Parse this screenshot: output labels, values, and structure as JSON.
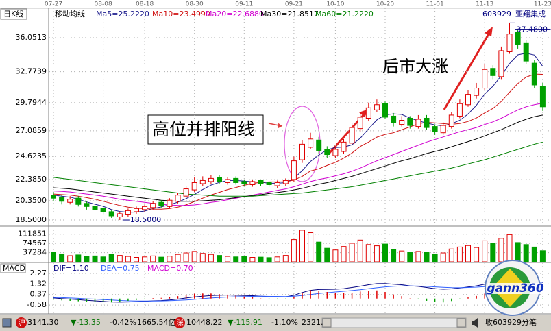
{
  "chart_data": [
    {
      "type": "candlestick",
      "title": "日K线",
      "subtitle": "移动均线",
      "symbol": "603929",
      "name": "亚翔集成",
      "categories": [
        "07-27",
        null,
        null,
        null,
        null,
        null,
        "08-08",
        null,
        null,
        null,
        null,
        "08-18",
        null,
        null,
        null,
        null,
        null,
        "08-30",
        null,
        null,
        null,
        null,
        null,
        "09-11",
        null,
        null,
        null,
        null,
        null,
        "09-21",
        null,
        null,
        null,
        null,
        "10-10",
        null,
        null,
        null,
        null,
        null,
        "10-20",
        null,
        null,
        null,
        null,
        null,
        "11-01",
        null,
        null,
        null,
        null,
        null,
        "11-13",
        null,
        null,
        null,
        null,
        null,
        null,
        "11-23"
      ],
      "open": [
        20.9,
        20.7,
        20.2,
        20.6,
        20.1,
        19.8,
        19.6,
        19.3,
        18.8,
        19.0,
        19.3,
        19.5,
        19.7,
        20.2,
        19.8,
        20.3,
        20.8,
        21.4,
        22.0,
        22.2,
        22.6,
        22.1,
        22.5,
        22.2,
        21.9,
        22.3,
        22.1,
        21.8,
        22.0,
        22.4,
        24.3,
        25.5,
        26.2,
        25.3,
        24.7,
        25.1,
        25.9,
        27.3,
        28.3,
        29.1,
        29.7,
        28.5,
        27.7,
        28.3,
        27.5,
        28.3,
        27.5,
        26.9,
        27.5,
        28.5,
        29.6,
        30.5,
        31.2,
        33.1,
        32.3,
        34.7,
        36.6,
        35.5,
        33.6,
        31.4
      ],
      "high": [
        21.2,
        20.9,
        20.8,
        20.8,
        20.3,
        20.0,
        19.8,
        19.5,
        19.3,
        19.6,
        19.8,
        20.0,
        20.3,
        20.4,
        20.6,
        21.1,
        21.8,
        22.6,
        22.7,
        22.8,
        22.8,
        22.6,
        22.7,
        22.4,
        22.4,
        22.4,
        22.2,
        22.3,
        22.5,
        24.6,
        26.2,
        26.9,
        26.5,
        25.6,
        25.5,
        26.3,
        27.8,
        28.9,
        29.8,
        30.1,
        29.9,
        28.8,
        28.5,
        28.5,
        28.6,
        28.6,
        27.7,
        27.9,
        28.9,
        30.1,
        31.0,
        31.7,
        33.5,
        33.4,
        35.2,
        37.48,
        36.9,
        35.8,
        33.9,
        31.7
      ],
      "low": [
        20.3,
        20.0,
        20.0,
        19.8,
        19.5,
        19.2,
        19.0,
        18.7,
        18.5,
        18.8,
        19.1,
        19.3,
        19.5,
        19.7,
        19.6,
        20.1,
        20.6,
        21.2,
        21.8,
        22.0,
        22.0,
        21.9,
        21.9,
        21.8,
        21.7,
        21.8,
        21.7,
        21.6,
        21.8,
        22.2,
        24.0,
        25.3,
        24.9,
        24.5,
        24.5,
        24.9,
        25.7,
        27.0,
        28.0,
        28.9,
        28.2,
        27.5,
        27.5,
        27.3,
        27.3,
        27.2,
        26.7,
        26.7,
        27.3,
        28.3,
        29.4,
        30.2,
        31.0,
        32.0,
        32.0,
        34.5,
        35.0,
        33.5,
        31.2,
        29.0
      ],
      "close": [
        20.6,
        20.3,
        20.5,
        20.0,
        19.8,
        19.5,
        19.3,
        18.9,
        19.1,
        19.4,
        19.6,
        19.8,
        20.1,
        19.9,
        20.4,
        20.9,
        21.5,
        22.1,
        22.3,
        22.5,
        22.2,
        22.4,
        22.1,
        22.0,
        22.2,
        22.0,
        21.9,
        22.1,
        22.3,
        24.2,
        25.8,
        26.3,
        25.2,
        24.8,
        25.3,
        26.0,
        27.4,
        28.4,
        29.3,
        29.6,
        28.4,
        27.9,
        28.1,
        27.6,
        28.2,
        27.4,
        27.0,
        27.6,
        28.6,
        29.7,
        30.6,
        31.2,
        33.0,
        32.4,
        34.8,
        36.4,
        35.4,
        33.8,
        31.5,
        29.4
      ],
      "value_labels": {
        "high": {
          "55": "37.4800"
        },
        "low": {
          "8": "18.5000"
        }
      },
      "up_color": "#e00000",
      "down_color": "#00a000",
      "ylim": [
        18.04,
        37.7
      ],
      "yticks": [
        {
          "value": 18.5,
          "label": "18.5000"
        },
        {
          "value": 20.35,
          "label": "20.3500"
        },
        {
          "value": 22.385,
          "label": "22.3850"
        },
        24.6235,
        27.0859,
        29.7944,
        32.7739,
        36.0513
      ],
      "grid": true,
      "series": [
        {
          "name": "Ma5=25.2220",
          "color": "#1a1a8c",
          "values": [
            20.9,
            20.8,
            20.7,
            20.5,
            20.24,
            20.02,
            19.82,
            19.5,
            19.32,
            19.24,
            19.26,
            19.36,
            19.6,
            19.76,
            19.96,
            20.22,
            20.56,
            20.96,
            21.44,
            21.86,
            22.12,
            22.3,
            22.3,
            22.24,
            22.18,
            22.14,
            22.04,
            22.04,
            22.1,
            22.5,
            23.26,
            24.14,
            24.76,
            25.26,
            25.48,
            25.52,
            25.74,
            26.38,
            27.28,
            28.14,
            28.62,
            28.72,
            28.66,
            28.32,
            28.04,
            27.84,
            27.66,
            27.56,
            27.76,
            28.1,
            28.7,
            29.54,
            30.62,
            31.38,
            32.4,
            33.56,
            34.4,
            34.56,
            34.38,
            33.3
          ]
        },
        {
          "name": "Ma10=23.4990",
          "color": "#d01010",
          "values": [
            21.0,
            20.95,
            20.9,
            20.8,
            20.65,
            20.5,
            20.3,
            20.1,
            19.9,
            19.74,
            19.64,
            19.59,
            19.55,
            19.54,
            19.6,
            19.74,
            19.96,
            20.28,
            20.6,
            20.91,
            21.17,
            21.43,
            21.63,
            21.84,
            22.02,
            22.13,
            22.17,
            22.17,
            22.17,
            22.34,
            22.7,
            23.22,
            23.43,
            23.75,
            24.06,
            24.46,
            24.95,
            25.58,
            26.0,
            26.48,
            26.74,
            26.9,
            27.19,
            27.47,
            27.76,
            27.9,
            27.86,
            27.78,
            27.71,
            27.79,
            27.99,
            28.32,
            28.81,
            29.24,
            29.9,
            30.8,
            31.64,
            32.26,
            32.55,
            32.52
          ]
        },
        {
          "name": "Ma20=22.6880",
          "color": "#d000d0",
          "values": [
            21.3,
            21.25,
            21.2,
            21.1,
            21.0,
            20.9,
            20.8,
            20.65,
            20.5,
            20.4,
            20.3,
            20.2,
            20.1,
            20.0,
            19.95,
            19.9,
            19.9,
            19.95,
            20.05,
            20.2,
            20.3,
            20.45,
            20.6,
            20.75,
            20.9,
            21.05,
            21.2,
            21.35,
            21.5,
            21.7,
            21.95,
            22.2,
            22.4,
            22.55,
            22.75,
            22.95,
            23.2,
            23.5,
            23.85,
            24.2,
            24.5,
            24.8,
            25.1,
            25.4,
            25.7,
            26.0,
            26.25,
            26.5,
            26.75,
            27.0,
            27.2,
            27.4,
            27.7,
            27.95,
            28.3,
            28.7,
            29.1,
            29.4,
            29.6,
            29.75
          ]
        },
        {
          "name": "Ma30=21.8517",
          "color": "#000000",
          "values": [
            21.6,
            21.55,
            21.5,
            21.4,
            21.3,
            21.2,
            21.1,
            21.0,
            20.9,
            20.8,
            20.7,
            20.6,
            20.5,
            20.4,
            20.35,
            20.3,
            20.3,
            20.3,
            20.35,
            20.4,
            20.45,
            20.55,
            20.65,
            20.75,
            20.85,
            20.95,
            21.05,
            21.15,
            21.25,
            21.4,
            21.55,
            21.75,
            21.95,
            22.1,
            22.3,
            22.5,
            22.7,
            22.95,
            23.2,
            23.45,
            23.7,
            23.95,
            24.2,
            24.4,
            24.65,
            24.9,
            25.1,
            25.3,
            25.55,
            25.8,
            26.05,
            26.3,
            26.6,
            26.9,
            27.2,
            27.55,
            27.9,
            28.2,
            28.45,
            28.6
          ]
        },
        {
          "name": "Ma60=21.2220",
          "color": "#008000",
          "values": [
            22.6,
            22.5,
            22.4,
            22.3,
            22.2,
            22.1,
            22.0,
            21.9,
            21.8,
            21.7,
            21.6,
            21.5,
            21.4,
            21.3,
            21.2,
            21.1,
            21.0,
            20.95,
            20.9,
            20.85,
            20.8,
            20.8,
            20.8,
            20.8,
            20.8,
            20.85,
            20.9,
            20.95,
            21.0,
            21.05,
            21.1,
            21.2,
            21.3,
            21.4,
            21.5,
            21.6,
            21.7,
            21.85,
            22.0,
            22.15,
            22.3,
            22.45,
            22.6,
            22.75,
            22.9,
            23.05,
            23.2,
            23.35,
            23.5,
            23.7,
            23.9,
            24.1,
            24.3,
            24.55,
            24.8,
            25.05,
            25.3,
            25.55,
            25.8,
            26.0
          ]
        }
      ],
      "annotations": [
        "高位并排阳线",
        "后市大涨"
      ]
    },
    {
      "type": "bar",
      "values": [
        38000,
        32000,
        25000,
        28000,
        22000,
        24000,
        20000,
        30000,
        26000,
        22000,
        18000,
        20000,
        24000,
        19000,
        23000,
        30000,
        36000,
        42000,
        34000,
        30000,
        26000,
        22000,
        20000,
        21000,
        18000,
        19000,
        17000,
        20000,
        26000,
        90000,
        128000,
        118000,
        80000,
        55000,
        48000,
        62000,
        75000,
        88000,
        70000,
        65000,
        72000,
        50000,
        44000,
        40000,
        42000,
        38000,
        30000,
        36000,
        52000,
        60000,
        66000,
        58000,
        85000,
        75000,
        95000,
        110000,
        78000,
        70000,
        60000,
        45000
      ],
      "ylim": [
        0,
        150000
      ],
      "yticks": [
        37284,
        74567,
        111851
      ],
      "grid": true
    },
    {
      "type": "line",
      "title": "MACD",
      "up_color": "#e00000",
      "down_color": "#00a000",
      "ylim": [
        -1.19,
        2.7
      ],
      "yticks": [
        -0.58,
        0.37,
        1.32,
        2.27
      ],
      "grid": true,
      "series": [
        {
          "name": "DIF=1.10",
          "color": "#000080",
          "values": [
            0.05,
            0.0,
            -0.05,
            -0.1,
            -0.15,
            -0.2,
            -0.25,
            -0.3,
            -0.32,
            -0.3,
            -0.28,
            -0.25,
            -0.2,
            -0.18,
            -0.12,
            -0.05,
            0.05,
            0.15,
            0.22,
            0.28,
            0.3,
            0.32,
            0.3,
            0.28,
            0.26,
            0.22,
            0.18,
            0.16,
            0.16,
            0.3,
            0.55,
            0.75,
            0.82,
            0.83,
            0.85,
            0.9,
            1.0,
            1.12,
            1.25,
            1.35,
            1.36,
            1.3,
            1.25,
            1.15,
            1.1,
            1.0,
            0.9,
            0.85,
            0.88,
            0.95,
            1.05,
            1.15,
            1.3,
            1.38,
            1.5,
            1.65,
            1.72,
            1.7,
            1.6,
            1.45
          ]
        },
        {
          "name": "DEA=0.75",
          "color": "#3060ff",
          "values": [
            0.1,
            0.08,
            0.05,
            0.02,
            -0.02,
            -0.05,
            -0.09,
            -0.13,
            -0.17,
            -0.2,
            -0.22,
            -0.22,
            -0.22,
            -0.21,
            -0.19,
            -0.16,
            -0.12,
            -0.07,
            -0.01,
            0.05,
            0.1,
            0.14,
            0.17,
            0.19,
            0.2,
            0.21,
            0.2,
            0.2,
            0.19,
            0.21,
            0.28,
            0.37,
            0.46,
            0.53,
            0.6,
            0.66,
            0.73,
            0.8,
            0.89,
            0.98,
            1.06,
            1.11,
            1.14,
            1.14,
            1.13,
            1.1,
            1.06,
            1.02,
            0.99,
            0.98,
            1.0,
            1.03,
            1.08,
            1.14,
            1.21,
            1.3,
            1.38,
            1.45,
            1.48,
            1.47
          ]
        },
        {
          "name": "MACD=0.70",
          "color": "#d000d0",
          "style": "bar",
          "values": [
            -0.1,
            -0.16,
            -0.2,
            -0.24,
            -0.26,
            -0.3,
            -0.32,
            -0.34,
            -0.3,
            -0.2,
            -0.12,
            -0.06,
            0.04,
            0.06,
            0.14,
            0.22,
            0.34,
            0.44,
            0.46,
            0.46,
            0.4,
            0.36,
            0.26,
            0.18,
            0.12,
            0.02,
            -0.04,
            -0.08,
            -0.06,
            0.18,
            0.54,
            0.76,
            0.72,
            0.6,
            0.5,
            0.48,
            0.54,
            0.64,
            0.72,
            0.74,
            0.6,
            0.38,
            0.22,
            0.02,
            -0.06,
            -0.2,
            -0.32,
            -0.34,
            -0.22,
            -0.06,
            0.1,
            0.24,
            0.44,
            0.48,
            0.58,
            0.7,
            0.68,
            0.5,
            0.24,
            -0.04
          ]
        }
      ]
    }
  ],
  "status_bar": {
    "items": [
      {
        "text": "沪",
        "color": "#ffffff"
      },
      {
        "text": "3141.30",
        "color": "#000000"
      },
      {
        "text": "▼-13.35",
        "color": "#007000"
      },
      {
        "text": "-0.42%",
        "color": "#000000"
      },
      {
        "text": "1665.54亿",
        "color": "#000000"
      },
      {
        "text": "深",
        "color": "#ffffff"
      },
      {
        "text": "10448.22",
        "color": "#000000"
      },
      {
        "text": "▼-115.91",
        "color": "#007000"
      },
      {
        "text": "-1.10%",
        "color": "#000000"
      },
      {
        "text": "2321.",
        "color": "#000000"
      },
      {
        "text": "收603929分笔",
        "color": "#000000"
      }
    ]
  },
  "logo": "gann360"
}
